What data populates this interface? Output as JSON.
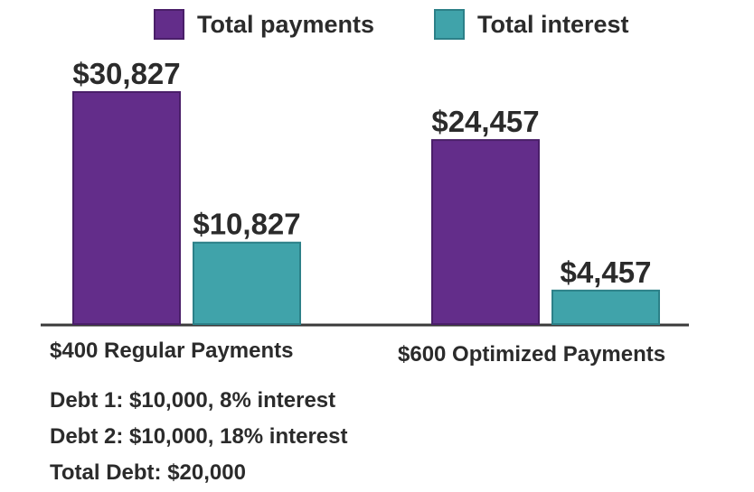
{
  "chart_data": {
    "type": "bar",
    "categories": [
      "$400 Regular Payments",
      "$600 Optimized Payments"
    ],
    "series": [
      {
        "name": "Total payments",
        "values": [
          30827,
          24457
        ],
        "labels": [
          "$30,827",
          "$24,457"
        ],
        "color": "#632d8a"
      },
      {
        "name": "Total interest",
        "values": [
          10827,
          4457
        ],
        "labels": [
          "$10,827",
          "$4,457"
        ],
        "color": "#40a3aa"
      }
    ],
    "ylim": [
      0,
      30827
    ],
    "grid": false,
    "legend": "top",
    "title": "",
    "xlabel": "",
    "ylabel": ""
  },
  "notes": [
    "Debt 1: $10,000, 8% interest",
    "Debt 2: $10,000, 18% interest",
    "Total Debt: $20,000"
  ],
  "colors": {
    "axis": "#3a3a3a",
    "text": "#2b2b2b"
  }
}
